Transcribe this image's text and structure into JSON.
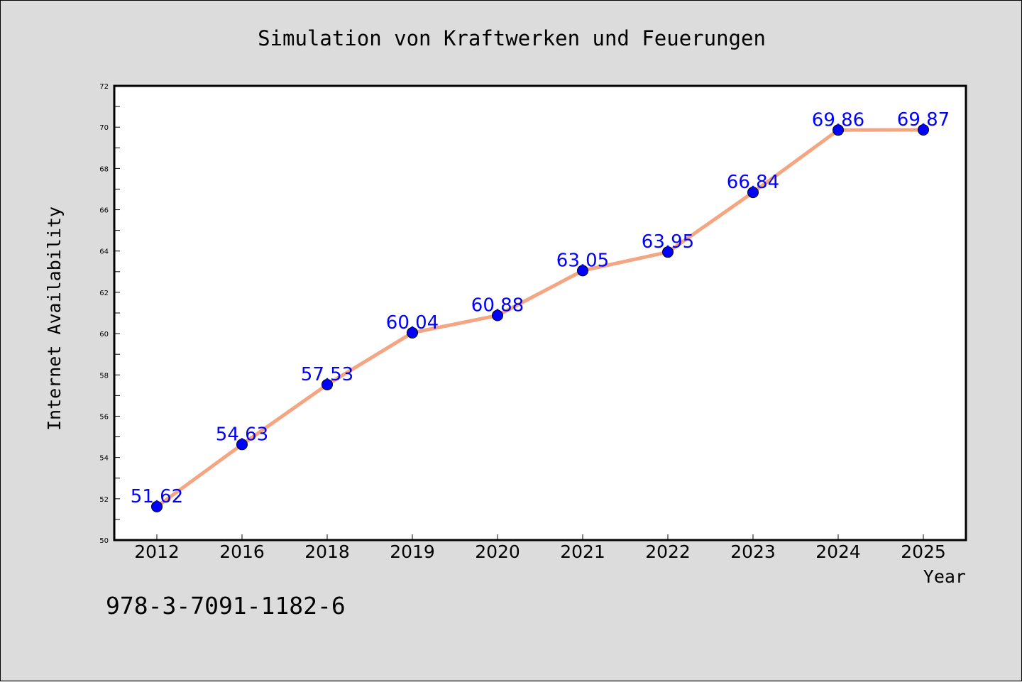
{
  "chart_data": {
    "type": "line",
    "title": "Simulation von Kraftwerken und Feuerungen",
    "xlabel": "Year",
    "ylabel": "Internet Availability",
    "categories": [
      "2012",
      "2016",
      "2018",
      "2019",
      "2020",
      "2021",
      "2022",
      "2023",
      "2024",
      "2025"
    ],
    "series": [
      {
        "values": [
          51.62,
          54.63,
          57.53,
          60.04,
          60.88,
          63.05,
          63.95,
          66.84,
          69.86,
          69.87
        ],
        "labels": [
          "51.62",
          "54.63",
          "57.53",
          "60.04",
          "60.88",
          "63.05",
          "63.95",
          "66.84",
          "69.86",
          "69.87"
        ],
        "line_color": "#f4a582",
        "marker_color": "#0000ff"
      }
    ],
    "ylim": [
      50,
      72
    ],
    "yticks": [
      "50",
      "52",
      "54",
      "56",
      "58",
      "60",
      "62",
      "64",
      "66",
      "68",
      "70",
      "72"
    ],
    "grid": false,
    "legend": "none"
  },
  "footer_code": "978-3-7091-1182-6",
  "colors": {
    "background": "#dcdcdc",
    "plot_area": "#ffffff",
    "line": "#f4a582",
    "marker": "#0000ff",
    "data_label": "#0000ff"
  }
}
